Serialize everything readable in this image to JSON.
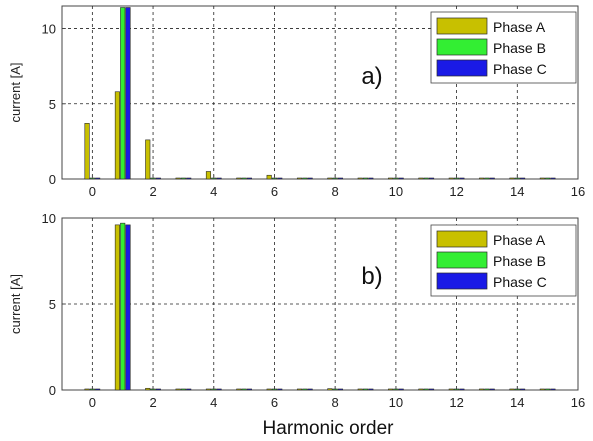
{
  "chart_data": [
    {
      "type": "bar",
      "panel_label": "a)",
      "ylabel": "current [A]",
      "x": [
        0,
        1,
        2,
        3,
        4,
        5,
        6,
        7,
        8,
        9,
        10,
        11,
        12,
        13,
        14,
        15
      ],
      "xlim": [
        -1,
        16
      ],
      "ylim": [
        0,
        11.5
      ],
      "xticks": [
        0,
        2,
        4,
        6,
        8,
        10,
        12,
        14,
        16
      ],
      "yticks": [
        0,
        5,
        10
      ],
      "grid": true,
      "legend_position": "top-right",
      "series": [
        {
          "name": "Phase A",
          "color": "#c8c000",
          "values": [
            3.7,
            5.8,
            2.6,
            0.05,
            0.5,
            0.05,
            0.25,
            0.05,
            0.05,
            0.05,
            0.05,
            0.05,
            0.05,
            0.05,
            0.05,
            0.05
          ]
        },
        {
          "name": "Phase B",
          "color": "#33ee33",
          "values": [
            0.05,
            11.4,
            0.05,
            0.05,
            0.05,
            0.05,
            0.05,
            0.05,
            0.05,
            0.05,
            0.05,
            0.05,
            0.05,
            0.05,
            0.05,
            0.05
          ]
        },
        {
          "name": "Phase C",
          "color": "#1a1ae6",
          "values": [
            0.05,
            11.4,
            0.05,
            0.05,
            0.05,
            0.05,
            0.05,
            0.05,
            0.05,
            0.05,
            0.05,
            0.05,
            0.05,
            0.05,
            0.05,
            0.05
          ]
        }
      ]
    },
    {
      "type": "bar",
      "panel_label": "b)",
      "ylabel": "current [A]",
      "xlabel": "Harmonic order",
      "x": [
        0,
        1,
        2,
        3,
        4,
        5,
        6,
        7,
        8,
        9,
        10,
        11,
        12,
        13,
        14,
        15
      ],
      "xlim": [
        -1,
        16
      ],
      "ylim": [
        0,
        10
      ],
      "xticks": [
        0,
        2,
        4,
        6,
        8,
        10,
        12,
        14,
        16
      ],
      "yticks": [
        0,
        5,
        10
      ],
      "grid": true,
      "legend_position": "top-right",
      "series": [
        {
          "name": "Phase A",
          "color": "#c8c000",
          "values": [
            0.06,
            9.6,
            0.1,
            0.06,
            0.06,
            0.06,
            0.06,
            0.06,
            0.08,
            0.06,
            0.06,
            0.06,
            0.06,
            0.06,
            0.06,
            0.06
          ]
        },
        {
          "name": "Phase B",
          "color": "#33ee33",
          "values": [
            0.06,
            9.7,
            0.06,
            0.06,
            0.06,
            0.06,
            0.06,
            0.06,
            0.06,
            0.06,
            0.06,
            0.06,
            0.06,
            0.06,
            0.06,
            0.06
          ]
        },
        {
          "name": "Phase C",
          "color": "#1a1ae6",
          "values": [
            0.06,
            9.6,
            0.06,
            0.06,
            0.06,
            0.06,
            0.06,
            0.06,
            0.06,
            0.06,
            0.06,
            0.06,
            0.06,
            0.06,
            0.06,
            0.06
          ]
        }
      ]
    }
  ]
}
